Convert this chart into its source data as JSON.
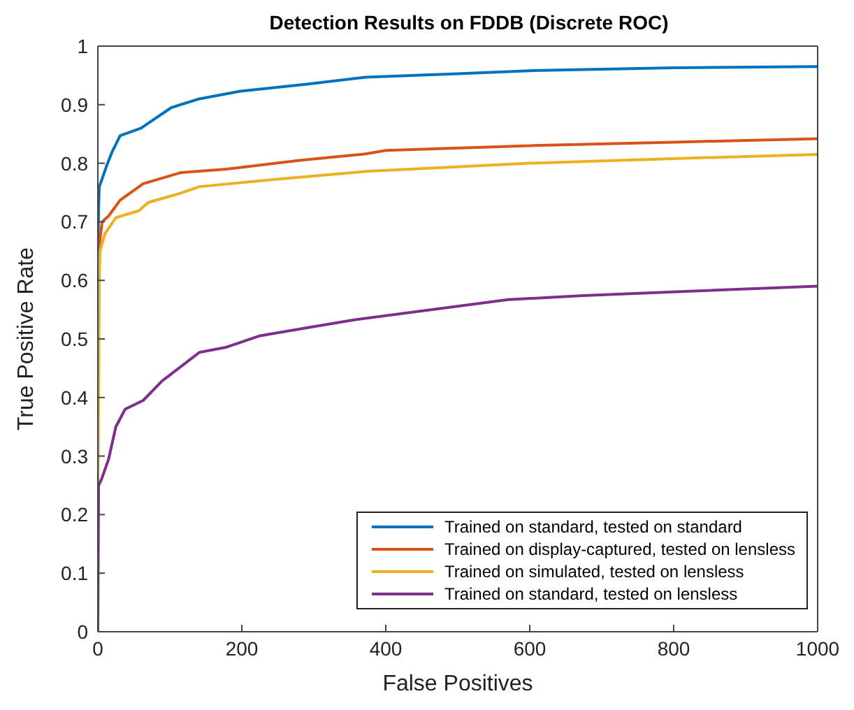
{
  "chart_data": {
    "type": "line",
    "title": "Detection Results on FDDB (Discrete ROC)",
    "xlabel": "False Positives",
    "ylabel": "True Positive Rate",
    "xlim": [
      0,
      1000
    ],
    "xticks": [
      0,
      200,
      400,
      600,
      800,
      1000
    ],
    "ylim": [
      0,
      1
    ],
    "yticks": [
      0,
      0.1,
      0.2,
      0.3,
      0.4,
      0.5,
      0.6,
      0.7,
      0.8,
      0.9,
      1
    ],
    "legend": "bottom right",
    "marker": "none",
    "line_style": "solid",
    "series": [
      {
        "name": "Trained on standard, tested on standard",
        "color": "#0072bd",
        "x": [
          0,
          1,
          2,
          5,
          12,
          20,
          31,
          60,
          102,
          141,
          198,
          290,
          372,
          500,
          600,
          800,
          1000
        ],
        "values": [
          0.64,
          0.72,
          0.76,
          0.77,
          0.795,
          0.82,
          0.847,
          0.86,
          0.895,
          0.91,
          0.923,
          0.935,
          0.947,
          0.953,
          0.958,
          0.963,
          0.965
        ]
      },
      {
        "name": "Trained on display-captured, tested on lensless",
        "color": "#d95319",
        "x": [
          0,
          1,
          3,
          6,
          15,
          31,
          63,
          115,
          179,
          280,
          372,
          400,
          600,
          800,
          1000
        ],
        "values": [
          0.6,
          0.64,
          0.67,
          0.7,
          0.71,
          0.737,
          0.765,
          0.784,
          0.79,
          0.805,
          0.816,
          0.822,
          0.83,
          0.836,
          0.842
        ]
      },
      {
        "name": "Trained on simulated, tested on lensless",
        "color": "#edb120",
        "x": [
          0,
          1,
          2,
          3,
          10,
          25,
          57,
          70,
          115,
          141,
          243,
          372,
          600,
          800,
          1000
        ],
        "values": [
          0.2,
          0.4,
          0.6,
          0.65,
          0.68,
          0.707,
          0.719,
          0.733,
          0.749,
          0.76,
          0.772,
          0.786,
          0.8,
          0.808,
          0.815
        ]
      },
      {
        "name": "Trained on standard, tested on lensless",
        "color": "#7e2f8e",
        "x": [
          0,
          1,
          5,
          15,
          25,
          38,
          63,
          89,
          121,
          141,
          179,
          224,
          295,
          353,
          570,
          674,
          834,
          1000
        ],
        "values": [
          0,
          0.25,
          0.26,
          0.295,
          0.35,
          0.38,
          0.395,
          0.428,
          0.458,
          0.477,
          0.486,
          0.505,
          0.52,
          0.532,
          0.567,
          0.574,
          0.582,
          0.59
        ]
      }
    ]
  }
}
